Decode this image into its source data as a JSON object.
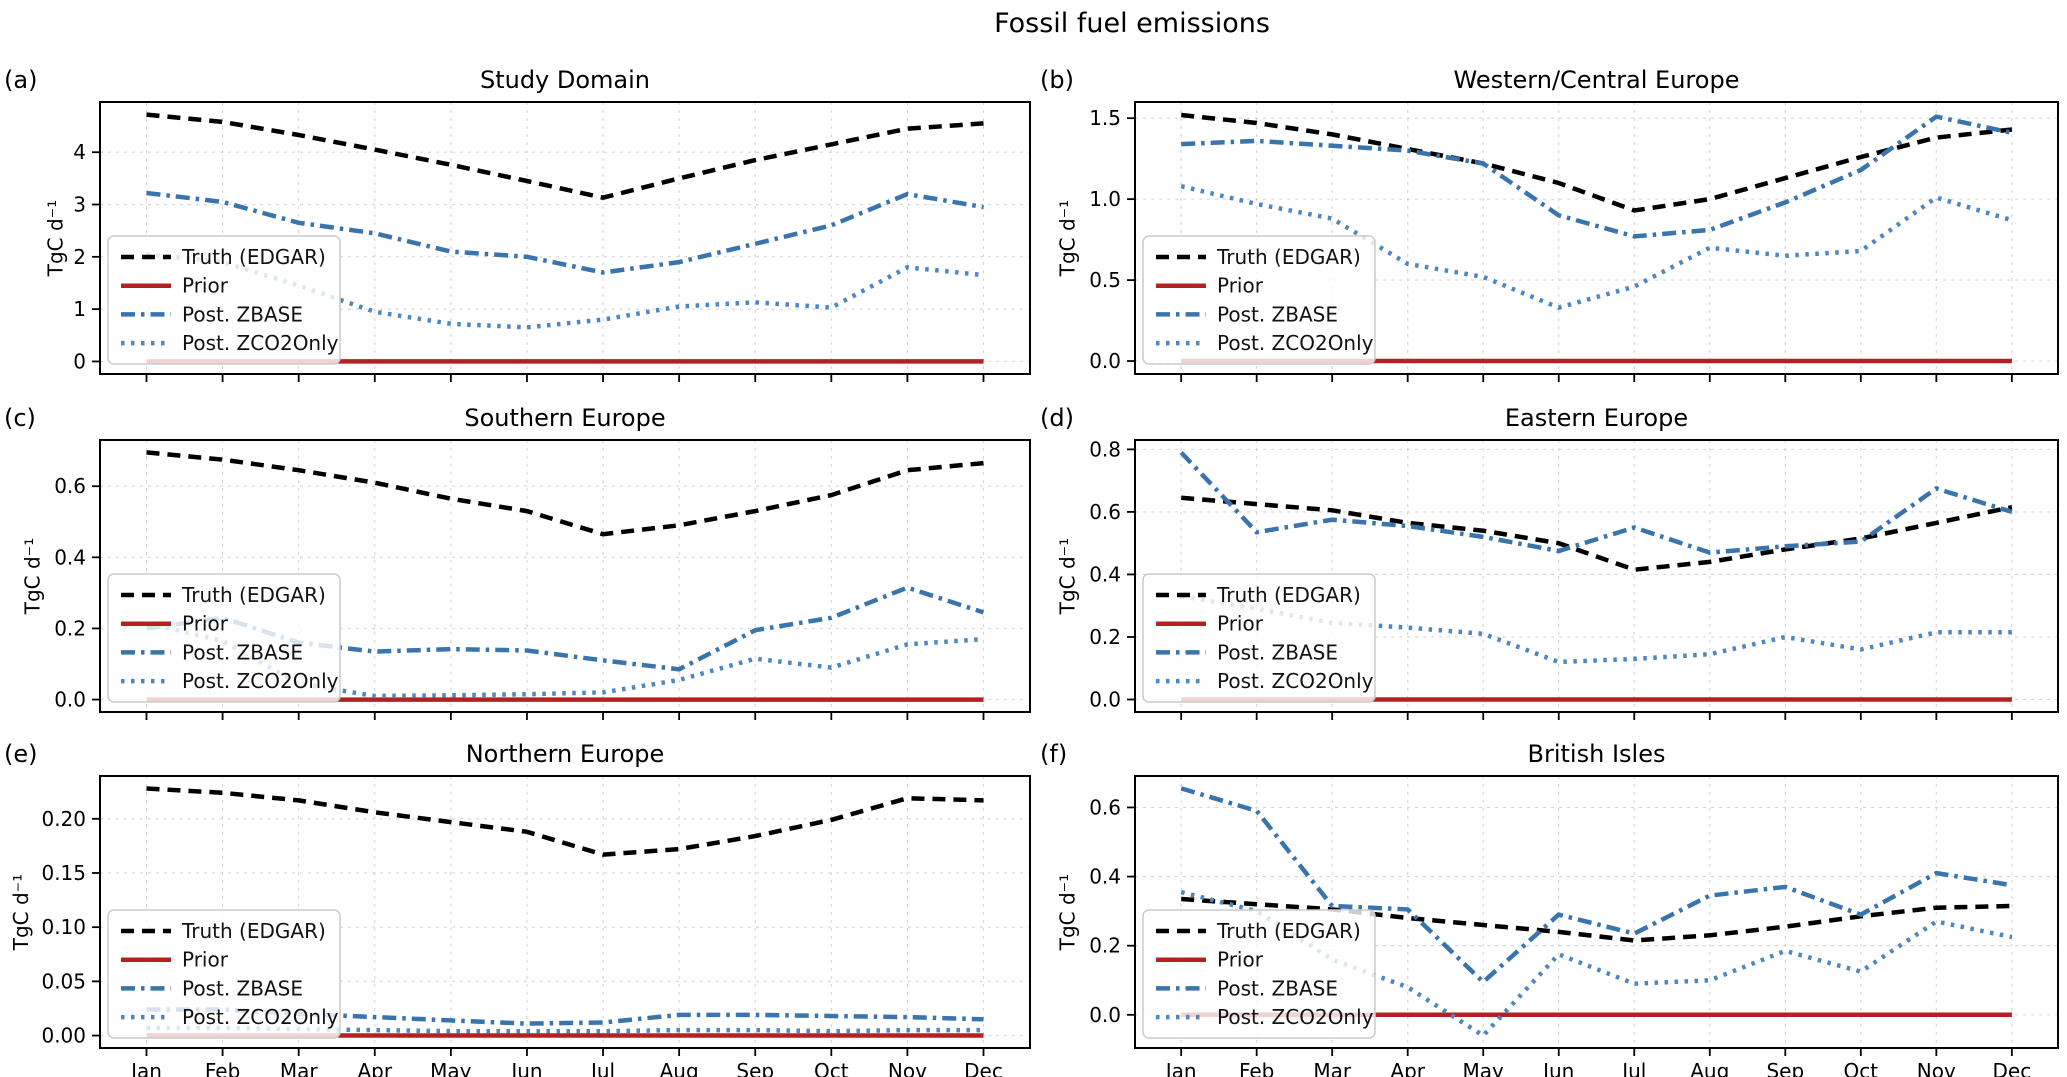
{
  "figure": {
    "suptitle": "Fossil fuel emissions"
  },
  "chart_data": {
    "type": "line",
    "categories": [
      "Jan",
      "Feb",
      "Mar",
      "Apr",
      "May",
      "Jun",
      "Jul",
      "Aug",
      "Sep",
      "Oct",
      "Nov",
      "Dec"
    ],
    "ylabel": "TgC d⁻¹",
    "grid": true,
    "legend_position": "lower left",
    "legend": [
      {
        "key": "truth",
        "label": "Truth (EDGAR)",
        "color": "#000000",
        "style": "dashed"
      },
      {
        "key": "prior",
        "label": "Prior",
        "color": "#b22222",
        "style": "solid"
      },
      {
        "key": "zbase",
        "label": "Post. ZBASE",
        "color": "#3a74ad",
        "style": "dashdot"
      },
      {
        "key": "zco2",
        "label": "Post. ZCO2Only",
        "color": "#4e86c0",
        "style": "dotted"
      }
    ],
    "panels": [
      {
        "panel_label": "(a)",
        "title": "Study Domain",
        "ylim": [
          -0.24,
          4.96
        ],
        "yticks": [
          {
            "v": 0,
            "label": "0"
          },
          {
            "v": 1,
            "label": "1"
          },
          {
            "v": 2,
            "label": "2"
          },
          {
            "v": 3,
            "label": "3"
          },
          {
            "v": 4,
            "label": "4"
          }
        ],
        "series": {
          "truth": [
            4.72,
            4.58,
            4.33,
            4.05,
            3.76,
            3.45,
            3.13,
            3.5,
            3.85,
            4.15,
            4.45,
            4.55
          ],
          "prior": [
            0,
            0,
            0,
            0,
            0,
            0,
            0,
            0,
            0,
            0,
            0,
            0
          ],
          "zbase": [
            3.22,
            3.05,
            2.65,
            2.45,
            2.1,
            2.0,
            1.7,
            1.9,
            2.25,
            2.6,
            3.2,
            2.95
          ],
          "zco2": [
            2.05,
            1.9,
            1.45,
            0.95,
            0.72,
            0.65,
            0.8,
            1.05,
            1.13,
            1.03,
            1.8,
            1.65
          ]
        }
      },
      {
        "panel_label": "(b)",
        "title": "Western/Central Europe",
        "ylim": [
          -0.08,
          1.6
        ],
        "yticks": [
          {
            "v": 0,
            "label": "0.0"
          },
          {
            "v": 0.5,
            "label": "0.5"
          },
          {
            "v": 1,
            "label": "1.0"
          },
          {
            "v": 1.5,
            "label": "1.5"
          }
        ],
        "series": {
          "truth": [
            1.52,
            1.47,
            1.4,
            1.31,
            1.22,
            1.1,
            0.93,
            1.0,
            1.13,
            1.26,
            1.38,
            1.43
          ],
          "prior": [
            0,
            0,
            0,
            0,
            0,
            0,
            0,
            0,
            0,
            0,
            0,
            0
          ],
          "zbase": [
            1.34,
            1.36,
            1.33,
            1.3,
            1.22,
            0.9,
            0.77,
            0.81,
            0.98,
            1.18,
            1.51,
            1.41
          ],
          "zco2": [
            1.08,
            0.97,
            0.88,
            0.6,
            0.52,
            0.33,
            0.46,
            0.7,
            0.65,
            0.68,
            1.01,
            0.87
          ]
        }
      },
      {
        "panel_label": "(c)",
        "title": "Southern Europe",
        "ylim": [
          -0.035,
          0.73
        ],
        "yticks": [
          {
            "v": 0,
            "label": "0.0"
          },
          {
            "v": 0.2,
            "label": "0.2"
          },
          {
            "v": 0.4,
            "label": "0.4"
          },
          {
            "v": 0.6,
            "label": "0.6"
          }
        ],
        "series": {
          "truth": [
            0.695,
            0.675,
            0.645,
            0.61,
            0.565,
            0.53,
            0.465,
            0.49,
            0.53,
            0.575,
            0.645,
            0.665
          ],
          "prior": [
            0,
            0,
            0,
            0,
            0,
            0,
            0,
            0,
            0,
            0,
            0,
            0
          ],
          "zbase": [
            0.2,
            0.23,
            0.16,
            0.135,
            0.142,
            0.138,
            0.11,
            0.085,
            0.195,
            0.23,
            0.315,
            0.245
          ],
          "zco2": [
            0.215,
            0.165,
            0.045,
            0.01,
            0.012,
            0.015,
            0.02,
            0.055,
            0.115,
            0.09,
            0.155,
            0.17
          ]
        }
      },
      {
        "panel_label": "(d)",
        "title": "Eastern Europe",
        "ylim": [
          -0.04,
          0.83
        ],
        "yticks": [
          {
            "v": 0,
            "label": "0.0"
          },
          {
            "v": 0.2,
            "label": "0.2"
          },
          {
            "v": 0.4,
            "label": "0.4"
          },
          {
            "v": 0.6,
            "label": "0.6"
          },
          {
            "v": 0.8,
            "label": "0.8"
          }
        ],
        "series": {
          "truth": [
            0.645,
            0.625,
            0.605,
            0.565,
            0.54,
            0.5,
            0.415,
            0.44,
            0.48,
            0.515,
            0.565,
            0.615
          ],
          "prior": [
            0,
            0,
            0,
            0,
            0,
            0,
            0,
            0,
            0,
            0,
            0,
            0
          ],
          "zbase": [
            0.79,
            0.535,
            0.575,
            0.555,
            0.52,
            0.475,
            0.55,
            0.47,
            0.49,
            0.505,
            0.675,
            0.6
          ],
          "zco2": [
            0.33,
            0.29,
            0.245,
            0.23,
            0.21,
            0.12,
            0.13,
            0.145,
            0.2,
            0.16,
            0.215,
            0.215
          ]
        }
      },
      {
        "panel_label": "(e)",
        "title": "Northern Europe",
        "ylim": [
          -0.0115,
          0.2395
        ],
        "yticks": [
          {
            "v": 0,
            "label": "0.00"
          },
          {
            "v": 0.05,
            "label": "0.05"
          },
          {
            "v": 0.1,
            "label": "0.10"
          },
          {
            "v": 0.15,
            "label": "0.15"
          },
          {
            "v": 0.2,
            "label": "0.20"
          }
        ],
        "series": {
          "truth": [
            0.228,
            0.224,
            0.217,
            0.206,
            0.197,
            0.188,
            0.167,
            0.172,
            0.184,
            0.199,
            0.219,
            0.217
          ],
          "prior": [
            0,
            0,
            0,
            0,
            0,
            0,
            0,
            0,
            0,
            0,
            0,
            0
          ],
          "zbase": [
            0.024,
            0.024,
            0.02,
            0.017,
            0.014,
            0.011,
            0.012,
            0.019,
            0.019,
            0.018,
            0.017,
            0.015
          ],
          "zco2": [
            0.007,
            0.007,
            0.006,
            0.005,
            0.004,
            0.004,
            0.004,
            0.005,
            0.005,
            0.004,
            0.005,
            0.005
          ]
        }
      },
      {
        "panel_label": "(f)",
        "title": "British Isles",
        "ylim": [
          -0.096,
          0.691
        ],
        "yticks": [
          {
            "v": 0,
            "label": "0.0"
          },
          {
            "v": 0.2,
            "label": "0.2"
          },
          {
            "v": 0.4,
            "label": "0.4"
          },
          {
            "v": 0.6,
            "label": "0.6"
          }
        ],
        "series": {
          "truth": [
            0.335,
            0.32,
            0.305,
            0.28,
            0.26,
            0.24,
            0.215,
            0.23,
            0.255,
            0.285,
            0.31,
            0.315
          ],
          "prior": [
            0,
            0,
            0,
            0,
            0,
            0,
            0,
            0,
            0,
            0,
            0,
            0
          ],
          "zbase": [
            0.655,
            0.59,
            0.315,
            0.305,
            0.095,
            0.29,
            0.235,
            0.345,
            0.37,
            0.29,
            0.41,
            0.375
          ],
          "zco2": [
            0.355,
            0.3,
            0.16,
            0.08,
            -0.06,
            0.175,
            0.09,
            0.1,
            0.185,
            0.125,
            0.27,
            0.225
          ]
        }
      }
    ]
  }
}
